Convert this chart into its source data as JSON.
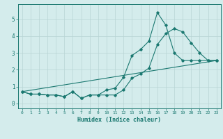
{
  "xlabel": "Humidex (Indice chaleur)",
  "background_color": "#d4ecec",
  "grid_color": "#b8d4d4",
  "line_color": "#1a7870",
  "text_color": "#1a7870",
  "x_ticks": [
    0,
    1,
    2,
    3,
    4,
    5,
    6,
    7,
    8,
    9,
    10,
    11,
    12,
    13,
    14,
    15,
    16,
    17,
    18,
    19,
    20,
    21,
    22,
    23
  ],
  "y_ticks": [
    0,
    1,
    2,
    3,
    4,
    5
  ],
  "ylim": [
    -0.3,
    5.9
  ],
  "xlim": [
    -0.5,
    23.5
  ],
  "line1_x": [
    0,
    1,
    2,
    3,
    4,
    5,
    6,
    7,
    8,
    9,
    10,
    11,
    12,
    13,
    14,
    15,
    16,
    17,
    18,
    19,
    20,
    21,
    22,
    23
  ],
  "line1_y": [
    0.7,
    0.55,
    0.55,
    0.5,
    0.5,
    0.4,
    0.7,
    0.3,
    0.5,
    0.5,
    0.8,
    0.9,
    1.55,
    2.85,
    3.2,
    3.7,
    5.4,
    4.65,
    3.0,
    2.55,
    2.55,
    2.55,
    2.55,
    2.55
  ],
  "line2_x": [
    0,
    1,
    2,
    3,
    4,
    5,
    6,
    7,
    8,
    9,
    10,
    11,
    12,
    13,
    14,
    15,
    16,
    17,
    18,
    19,
    20,
    21,
    22,
    23
  ],
  "line2_y": [
    0.7,
    0.55,
    0.55,
    0.5,
    0.5,
    0.4,
    0.7,
    0.3,
    0.5,
    0.5,
    0.5,
    0.5,
    0.8,
    1.5,
    1.75,
    2.1,
    3.5,
    4.15,
    4.45,
    4.25,
    3.6,
    3.0,
    2.55,
    2.55
  ],
  "line3_x": [
    0,
    23
  ],
  "line3_y": [
    0.7,
    2.55
  ]
}
